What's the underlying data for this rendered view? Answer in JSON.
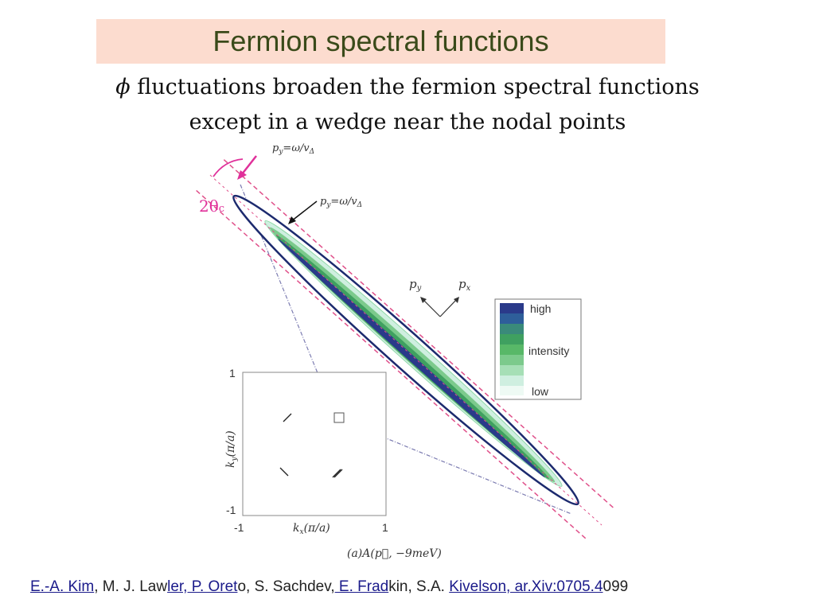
{
  "slide": {
    "title": "Fermion spectral functions",
    "subtitle_line1_symbol": "ϕ",
    "subtitle_line1_text": " fluctuations broaden the fermion spectral functions",
    "subtitle_line2": "except in a wedge near the nodal points"
  },
  "figure": {
    "label_py_top": "p",
    "label_py_top_sub": "y",
    "label_py_top_rest": "=ω/v",
    "label_py_top_rest_sub": "Δ",
    "label_py_mid": "p",
    "label_py_mid_sub": "y",
    "label_py_mid_rest": "=ω/v",
    "label_py_mid_rest_sub": "Δ",
    "label_theta": "2θ",
    "label_theta_sub": "c",
    "axis_py": "p",
    "axis_py_sub": "y",
    "axis_px": "p",
    "axis_px_sub": "x",
    "legend_high": "high",
    "legend_intensity": "intensity",
    "legend_low": "low",
    "inset_ylabel": "k",
    "inset_ylabel_sub": "y",
    "inset_ylabel_rest": "(π/a)",
    "inset_xlabel": "k",
    "inset_xlabel_sub": "x",
    "inset_xlabel_rest": "(π/a)",
    "inset_y_top": "1",
    "inset_y_bottom": "-1",
    "inset_x_left": "-1",
    "inset_x_right": "1",
    "caption": "(a)A(p⃗, −9meV)",
    "colors": {
      "ellipse": "#1c2a6e",
      "dashed": "#e0508a",
      "pink_label": "#e0309a",
      "legend_levels": [
        "#2a3a8a",
        "#2e5e9a",
        "#3a8a7a",
        "#3fa060",
        "#58b868",
        "#7cca8c",
        "#a6dfb6",
        "#cfefe0",
        "#ffffff"
      ]
    }
  },
  "citation": {
    "p1": "E.-A. Kim",
    "p2": ", M. J. Law",
    "p3": "ler, P. Oret",
    "p4": "o, S. Sachdev,",
    "p5": " E. Frad",
    "p6": "kin, S.A. ",
    "p7": "Kivelson, ar.Xiv:0705.4",
    "p8": "099"
  }
}
